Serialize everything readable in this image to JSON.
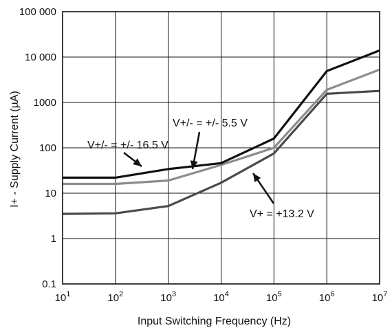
{
  "chart_data": {
    "type": "line",
    "xlabel": "Input Switching Frequency (Hz)",
    "ylabel": "I+ - Supply Current (µA)",
    "xscale": "log",
    "yscale": "log",
    "xlim": [
      10,
      10000000
    ],
    "ylim": [
      0.1,
      100000
    ],
    "grid": true,
    "x_ticks": [
      {
        "value": 10,
        "base": "10",
        "exp": "1"
      },
      {
        "value": 100,
        "base": "10",
        "exp": "2"
      },
      {
        "value": 1000,
        "base": "10",
        "exp": "3"
      },
      {
        "value": 10000,
        "base": "10",
        "exp": "4"
      },
      {
        "value": 100000,
        "base": "10",
        "exp": "5"
      },
      {
        "value": 1000000,
        "base": "10",
        "exp": "6"
      },
      {
        "value": 10000000,
        "base": "10",
        "exp": "7"
      }
    ],
    "y_ticks": [
      {
        "value": 0.1,
        "label": "0.1"
      },
      {
        "value": 1,
        "label": "1"
      },
      {
        "value": 10,
        "label": "10"
      },
      {
        "value": 100,
        "label": "100"
      },
      {
        "value": 1000,
        "label": "1000"
      },
      {
        "value": 10000,
        "label": "10 000"
      },
      {
        "value": 100000,
        "label": "100 000"
      }
    ],
    "series": [
      {
        "name": "V+/- = +/- 16.5 V",
        "color": "#111111",
        "x": [
          10,
          100,
          1000,
          10000,
          100000,
          1000000,
          10000000
        ],
        "y": [
          22,
          22,
          34,
          46,
          160,
          4900,
          14000
        ]
      },
      {
        "name": "V+/- = +/- 5.5 V",
        "color": "#8c8c8c",
        "x": [
          10,
          100,
          1000,
          10000,
          100000,
          1000000,
          10000000
        ],
        "y": [
          16,
          16,
          19,
          42,
          100,
          1900,
          5300
        ]
      },
      {
        "name": "V+ = +13.2 V",
        "color": "#4a4a4a",
        "x": [
          10,
          100,
          1000,
          10000,
          100000,
          1000000,
          10000000
        ],
        "y": [
          3.5,
          3.6,
          5.2,
          17,
          75,
          1550,
          1800
        ]
      }
    ],
    "annotations": [
      {
        "text": "V+/- = +/- 16.5 V",
        "series": 0
      },
      {
        "text": "V+/- = +/- 5.5 V",
        "series": 1
      },
      {
        "text": "V+ = +13.2 V",
        "series": 2
      }
    ]
  }
}
